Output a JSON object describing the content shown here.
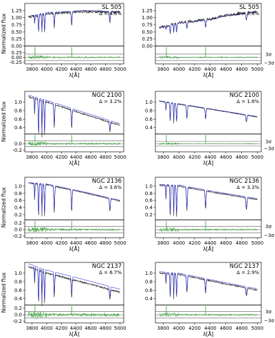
{
  "figure": {
    "y_axis_title": "Normalized flux",
    "x_axis_title": "λ[Å]",
    "sigma_pos_label": "3σ",
    "sigma_neg_label": "−3σ"
  },
  "chart_data": [
    {
      "type": "line",
      "panel": "SL 505 left",
      "title": "SL 505",
      "delta": "Δ = 4.6%",
      "xlim": [
        3700,
        5050
      ],
      "ylim": [
        0.0,
        1.5
      ],
      "yticks": [
        "0.00",
        "0.25",
        "0.50",
        "0.75",
        "1.00",
        "1.25"
      ],
      "yticks_values": [
        0,
        0.25,
        0.5,
        0.75,
        1.0,
        1.25
      ],
      "res_ylim": [
        -0.35,
        0.6
      ],
      "res_yticks": [
        "0.25",
        "0.00",
        "-0.25"
      ],
      "res_yticks_values": [
        0.25,
        0.0,
        -0.25
      ],
      "xticks": [
        "3800",
        "4000",
        "4200",
        "4400",
        "4600",
        "4800",
        "5000"
      ],
      "xticks_values": [
        3800,
        4000,
        4200,
        4400,
        4600,
        4800,
        5000
      ],
      "continuum": [
        [
          3750,
          1.02
        ],
        [
          4000,
          1.14
        ],
        [
          4500,
          1.22
        ],
        [
          5000,
          1.18
        ]
      ],
      "model_offset": 0.03,
      "line_scale": 1.0,
      "noise": 0.05,
      "sigma_lines": [
        0.17,
        -0.17
      ],
      "residual_amp": 0.09
    },
    {
      "type": "line",
      "panel": "SL 505 right",
      "title": "SL 505",
      "delta": "Δ = 3.8%",
      "xlim": [
        3700,
        5050
      ],
      "ylim": [
        0.0,
        1.5
      ],
      "yticks": [
        "0.00",
        "0.25",
        "0.50",
        "0.75",
        "1.00",
        "1.25"
      ],
      "yticks_values": [
        0,
        0.25,
        0.5,
        0.75,
        1.0,
        1.25
      ],
      "res_ylim": [
        -0.35,
        0.6
      ],
      "res_yticks": [],
      "res_yticks_values": [],
      "xticks": [
        "3800",
        "4000",
        "4200",
        "4400",
        "4600",
        "4800",
        "5000"
      ],
      "xticks_values": [
        3800,
        4000,
        4200,
        4400,
        4600,
        4800,
        5000
      ],
      "continuum": [
        [
          3750,
          0.65
        ],
        [
          4000,
          0.82
        ],
        [
          4400,
          0.95
        ],
        [
          4600,
          1.08
        ],
        [
          5000,
          1.22
        ]
      ],
      "model_offset": -0.02,
      "line_scale": 0.7,
      "noise": 0.05,
      "sigma_lines": [
        0.17,
        -0.17
      ],
      "residual_amp": 0.07
    },
    {
      "type": "line",
      "panel": "NGC 2100 left",
      "title": "NGC 2100",
      "delta": "Δ = 3.2%",
      "xlim": [
        3700,
        5050
      ],
      "ylim": [
        0.25,
        1.25
      ],
      "yticks": [
        "0.4",
        "0.6",
        "0.8",
        "1.0"
      ],
      "yticks_values": [
        0.4,
        0.6,
        0.8,
        1.0
      ],
      "res_ylim": [
        -0.25,
        0.3
      ],
      "res_yticks": [
        "0.0",
        "-0.2"
      ],
      "res_yticks_values": [
        0.0,
        -0.2
      ],
      "xticks": [
        "3800",
        "4000",
        "4200",
        "4400",
        "4600",
        "4800",
        "5000"
      ],
      "xticks_values": [
        3800,
        4000,
        4200,
        4400,
        4600,
        4800,
        5000
      ],
      "continuum": [
        [
          3750,
          1.12
        ],
        [
          4000,
          1.0
        ],
        [
          4500,
          0.72
        ],
        [
          5000,
          0.45
        ]
      ],
      "model_offset": 0.04,
      "line_scale": 1.4,
      "noise": 0.015,
      "sigma_lines": [
        0.09,
        -0.09
      ],
      "residual_amp": 0.06
    },
    {
      "type": "line",
      "panel": "NGC 2100 right",
      "title": "NGC 2100",
      "delta": "Δ = 1.8%",
      "xlim": [
        3700,
        5050
      ],
      "ylim": [
        0.25,
        1.25
      ],
      "yticks": [
        "0.4",
        "0.6",
        "0.8",
        "1.0"
      ],
      "yticks_values": [
        0.4,
        0.6,
        0.8,
        1.0
      ],
      "res_ylim": [
        -0.25,
        0.3
      ],
      "res_yticks": [],
      "res_yticks_values": [],
      "xticks": [
        "3800",
        "4000",
        "4200",
        "4400",
        "4600",
        "4800",
        "5000"
      ],
      "xticks_values": [
        3800,
        4000,
        4200,
        4400,
        4600,
        4800,
        5000
      ],
      "continuum": [
        [
          3750,
          1.02
        ],
        [
          4000,
          0.95
        ],
        [
          4500,
          0.8
        ],
        [
          5000,
          0.65
        ]
      ],
      "model_offset": 0.01,
      "line_scale": 0.8,
      "noise": 0.01,
      "sigma_lines": [
        0.07,
        -0.07
      ],
      "residual_amp": 0.03
    },
    {
      "type": "line",
      "panel": "NGC 2136 left",
      "title": "NGC 2136",
      "delta": "Δ = 3.6%",
      "xlim": [
        3700,
        5050
      ],
      "ylim": [
        0.05,
        1.25
      ],
      "yticks": [
        "0.2",
        "0.4",
        "0.6",
        "0.8",
        "1.0"
      ],
      "yticks_values": [
        0.2,
        0.4,
        0.6,
        0.8,
        1.0
      ],
      "res_ylim": [
        -0.25,
        0.3
      ],
      "res_yticks": [
        "0.2",
        "0.0",
        "-0.2"
      ],
      "res_yticks_values": [
        0.2,
        0.0,
        -0.2
      ],
      "xticks": [
        "3800",
        "4000",
        "4200",
        "4400",
        "4600",
        "4800",
        "5000"
      ],
      "xticks_values": [
        3800,
        4000,
        4200,
        4400,
        4600,
        4800,
        5000
      ],
      "continuum": [
        [
          3750,
          1.08
        ],
        [
          4000,
          1.04
        ],
        [
          4500,
          0.82
        ],
        [
          5000,
          0.58
        ]
      ],
      "model_offset": 0.02,
      "line_scale": 1.8,
      "noise": 0.015,
      "sigma_lines": [
        0.1,
        -0.1
      ],
      "residual_amp": 0.07
    },
    {
      "type": "line",
      "panel": "NGC 2136 right",
      "title": "NGC 2136",
      "delta": "Δ = 3.3%",
      "xlim": [
        3700,
        5050
      ],
      "ylim": [
        0.05,
        1.25
      ],
      "yticks": [
        "0.2",
        "0.4",
        "0.6",
        "0.8",
        "1.0"
      ],
      "yticks_values": [
        0.2,
        0.4,
        0.6,
        0.8,
        1.0
      ],
      "res_ylim": [
        -0.25,
        0.3
      ],
      "res_yticks": [],
      "res_yticks_values": [],
      "xticks": [
        "3800",
        "4000",
        "4200",
        "4400",
        "4600",
        "4800",
        "5000"
      ],
      "xticks_values": [
        3800,
        4000,
        4200,
        4400,
        4600,
        4800,
        5000
      ],
      "continuum": [
        [
          3750,
          1.02
        ],
        [
          4000,
          1.0
        ],
        [
          4500,
          0.8
        ],
        [
          5000,
          0.62
        ]
      ],
      "model_offset": 0.03,
      "line_scale": 1.6,
      "noise": 0.015,
      "sigma_lines": [
        0.1,
        -0.1
      ],
      "residual_amp": 0.06
    },
    {
      "type": "line",
      "panel": "NGC 2137 left",
      "title": "NGC 2137",
      "delta": "Δ = 6.7%",
      "xlim": [
        3700,
        5050
      ],
      "ylim": [
        0.25,
        1.25
      ],
      "yticks": [
        "0.4",
        "0.6",
        "0.8",
        "1.0"
      ],
      "yticks_values": [
        0.4,
        0.6,
        0.8,
        1.0
      ],
      "res_ylim": [
        -0.25,
        0.3
      ],
      "res_yticks": [
        "0.2",
        "0.0",
        "-0.2"
      ],
      "res_yticks_values": [
        0.2,
        0.0,
        -0.2
      ],
      "xticks": [
        "3800",
        "4000",
        "4200",
        "4400",
        "4600",
        "4800",
        "5000"
      ],
      "xticks_values": [
        3800,
        4000,
        4200,
        4400,
        4600,
        4800,
        5000
      ],
      "continuum": [
        [
          3750,
          1.15
        ],
        [
          4000,
          1.0
        ],
        [
          4500,
          0.78
        ],
        [
          5000,
          0.55
        ]
      ],
      "model_offset": 0.07,
      "line_scale": 1.3,
      "noise": 0.02,
      "sigma_lines": [
        0.1,
        -0.1
      ],
      "residual_amp": 0.1
    },
    {
      "type": "line",
      "panel": "NGC 2137 right",
      "title": "NGC 2137",
      "delta": "Δ = 2.9%",
      "xlim": [
        3700,
        5050
      ],
      "ylim": [
        0.25,
        1.25
      ],
      "yticks": [
        "0.4",
        "0.6",
        "0.8",
        "1.0"
      ],
      "yticks_values": [
        0.4,
        0.6,
        0.8,
        1.0
      ],
      "res_ylim": [
        -0.25,
        0.3
      ],
      "res_yticks": [],
      "res_yticks_values": [],
      "xticks": [
        "3800",
        "4000",
        "4200",
        "4400",
        "4600",
        "4800",
        "5000"
      ],
      "xticks_values": [
        3800,
        4000,
        4200,
        4400,
        4600,
        4800,
        5000
      ],
      "continuum": [
        [
          3750,
          1.0
        ],
        [
          4000,
          0.97
        ],
        [
          4500,
          0.78
        ],
        [
          5000,
          0.6
        ]
      ],
      "model_offset": 0.03,
      "line_scale": 1.0,
      "noise": 0.015,
      "sigma_lines": [
        0.1,
        -0.1
      ],
      "residual_amp": 0.06
    }
  ],
  "colors": {
    "observed": "#1a1a1a",
    "model": "#2b2bd9",
    "residual": "#2ca02c",
    "reference": "#555555"
  }
}
